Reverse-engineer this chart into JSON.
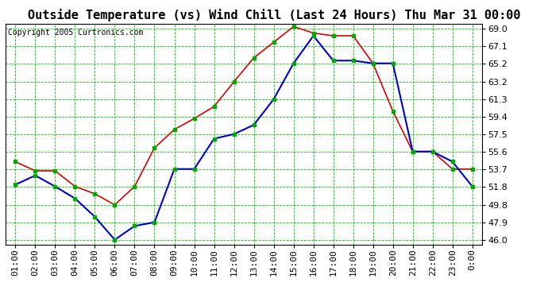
{
  "title": "Outside Temperature (vs) Wind Chill (Last 24 Hours) Thu Mar 31 00:00",
  "copyright": "Copyright 2005 Curtronics.com",
  "x_labels": [
    "01:00",
    "02:00",
    "03:00",
    "04:00",
    "05:00",
    "06:00",
    "07:00",
    "08:00",
    "09:00",
    "10:00",
    "11:00",
    "12:00",
    "13:00",
    "14:00",
    "15:00",
    "16:00",
    "17:00",
    "18:00",
    "19:00",
    "20:00",
    "21:00",
    "22:00",
    "23:00",
    "0:00"
  ],
  "y_ticks": [
    46.0,
    47.9,
    49.8,
    51.8,
    53.7,
    55.6,
    57.5,
    59.4,
    61.3,
    63.2,
    65.2,
    67.1,
    69.0
  ],
  "ylim": [
    45.5,
    69.5
  ],
  "red_line": [
    54.5,
    53.5,
    53.5,
    51.8,
    51.0,
    49.8,
    51.8,
    56.0,
    58.0,
    59.2,
    60.5,
    63.2,
    65.8,
    67.5,
    69.2,
    68.5,
    68.2,
    68.2,
    65.2,
    60.0,
    55.6,
    55.6,
    53.7,
    53.7
  ],
  "blue_line": [
    52.0,
    53.0,
    51.8,
    50.5,
    48.5,
    46.0,
    47.5,
    47.9,
    53.7,
    53.7,
    57.0,
    57.5,
    58.5,
    61.3,
    65.2,
    68.2,
    65.5,
    65.5,
    65.2,
    65.2,
    55.6,
    55.6,
    54.5,
    51.8
  ],
  "red_color": "#dd0000",
  "blue_color": "#0000cc",
  "green_marker_color": "#00aa00",
  "bg_color": "#ffffff",
  "plot_bg_color": "#ffffff",
  "grid_color": "#00cc00",
  "title_fontsize": 11,
  "tick_fontsize": 8,
  "copyright_fontsize": 7
}
